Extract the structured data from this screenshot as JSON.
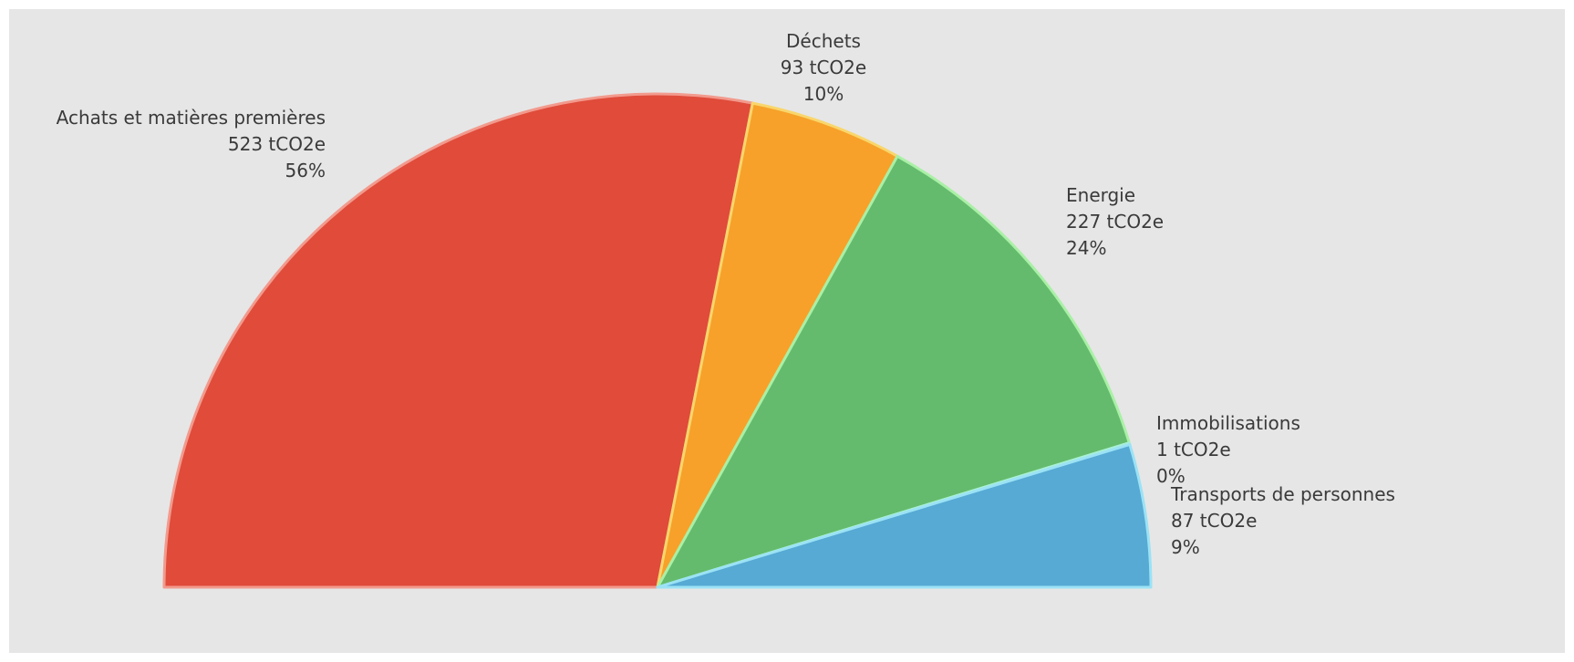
{
  "chart_data": {
    "type": "pie",
    "variant": "semi-circle",
    "unit": "tCO2e",
    "slices": [
      {
        "name": "Achats et matières premières",
        "value": 523,
        "value_label": "523 tCO2e",
        "percent_label": "56%",
        "color": "#e04b3a",
        "stroke": "#f29a8d",
        "label_anchor": "end"
      },
      {
        "name": "Déchets",
        "value": 93,
        "value_label": "93 tCO2e",
        "percent_label": "10%",
        "color": "#f7a12a",
        "stroke": "#f9d66b",
        "label_anchor": "middle"
      },
      {
        "name": "Energie",
        "value": 227,
        "value_label": "227 tCO2e",
        "percent_label": "24%",
        "color": "#64bb6d",
        "stroke": "#a9f0a6",
        "label_anchor": "start"
      },
      {
        "name": "Immobilisations",
        "value": 1,
        "value_label": "1 tCO2e",
        "percent_label": "0%",
        "color": "#8fe3c5",
        "stroke": "#a9f0d6",
        "label_anchor": "start"
      },
      {
        "name": "Transports de personnes",
        "value": 87,
        "value_label": "87 tCO2e",
        "percent_label": "9%",
        "color": "#56aad4",
        "stroke": "#9be2f5",
        "label_anchor": "start"
      }
    ],
    "background": "#e6e6e6",
    "legend": "none"
  }
}
